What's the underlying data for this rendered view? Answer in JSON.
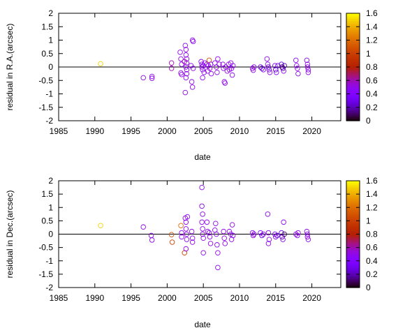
{
  "chart_data": [
    {
      "type": "scatter",
      "xlabel": "date",
      "ylabel": "residual in R.A.(arcsec)",
      "xlim": [
        1985,
        2024
      ],
      "ylim": [
        -2,
        2
      ],
      "xticks": [
        "1985",
        "1990",
        "1995",
        "2000",
        "2005",
        "2010",
        "2015",
        "2020"
      ],
      "yticks": [
        "-2",
        "-1.5",
        "-1",
        "-0.5",
        "0",
        "0.5",
        "1",
        "1.5",
        "2"
      ],
      "zero_line": 0,
      "colorbar": {
        "min": 0,
        "max": 1.6,
        "ticks": [
          "0",
          "0.2",
          "0.4",
          "0.6",
          "0.8",
          "1",
          "1.2",
          "1.4",
          "1.6"
        ]
      },
      "points": [
        {
          "x": 1990.8,
          "y": 0.12,
          "c": 1.5
        },
        {
          "x": 1996.7,
          "y": -0.4,
          "c": 0.5
        },
        {
          "x": 1997.9,
          "y": -0.35,
          "c": 0.5
        },
        {
          "x": 1997.9,
          "y": -0.42,
          "c": 0.5
        },
        {
          "x": 2000.6,
          "y": 0.15,
          "c": 0.6
        },
        {
          "x": 2000.6,
          "y": -0.05,
          "c": 0.6
        },
        {
          "x": 2001.8,
          "y": 0.55,
          "c": 0.5
        },
        {
          "x": 2001.9,
          "y": 0.3,
          "c": 0.5
        },
        {
          "x": 2001.9,
          "y": -0.22,
          "c": 0.5
        },
        {
          "x": 2002.0,
          "y": -0.28,
          "c": 0.5
        },
        {
          "x": 2002.0,
          "y": 0.1,
          "c": 0.5
        },
        {
          "x": 2002.5,
          "y": 0.8,
          "c": 0.5
        },
        {
          "x": 2002.6,
          "y": 0.65,
          "c": 0.5
        },
        {
          "x": 2002.6,
          "y": 0.45,
          "c": 0.5
        },
        {
          "x": 2002.7,
          "y": 0.3,
          "c": 0.5
        },
        {
          "x": 2002.7,
          "y": 0.15,
          "c": 0.5
        },
        {
          "x": 2002.6,
          "y": 0.0,
          "c": 0.5
        },
        {
          "x": 2002.7,
          "y": -0.1,
          "c": 0.5
        },
        {
          "x": 2002.7,
          "y": -0.25,
          "c": 0.5
        },
        {
          "x": 2002.6,
          "y": -0.4,
          "c": 0.5
        },
        {
          "x": 2002.5,
          "y": -0.95,
          "c": 0.5
        },
        {
          "x": 2002.4,
          "y": 0.2,
          "c": 0.6
        },
        {
          "x": 2003.3,
          "y": 0.05,
          "c": 0.5
        },
        {
          "x": 2003.4,
          "y": -0.55,
          "c": 0.5
        },
        {
          "x": 2003.5,
          "y": -0.75,
          "c": 0.5
        },
        {
          "x": 2003.5,
          "y": 1.0,
          "c": 0.5
        },
        {
          "x": 2003.6,
          "y": 0.95,
          "c": 0.5
        },
        {
          "x": 2003.6,
          "y": -0.05,
          "c": 0.5
        },
        {
          "x": 2004.7,
          "y": 0.2,
          "c": 0.5
        },
        {
          "x": 2004.8,
          "y": 0.1,
          "c": 0.5
        },
        {
          "x": 2004.8,
          "y": 0.0,
          "c": 0.5
        },
        {
          "x": 2004.9,
          "y": -0.1,
          "c": 0.5
        },
        {
          "x": 2004.9,
          "y": -0.4,
          "c": 0.5
        },
        {
          "x": 2005.0,
          "y": 0.05,
          "c": 0.5
        },
        {
          "x": 2005.1,
          "y": -0.2,
          "c": 0.5
        },
        {
          "x": 2005.2,
          "y": 0.15,
          "c": 0.5
        },
        {
          "x": 2005.5,
          "y": 0.1,
          "c": 0.5
        },
        {
          "x": 2005.6,
          "y": -0.15,
          "c": 0.5
        },
        {
          "x": 2005.7,
          "y": 0.05,
          "c": 0.5
        },
        {
          "x": 2005.8,
          "y": 0.25,
          "c": 1.1
        },
        {
          "x": 2005.9,
          "y": -0.05,
          "c": 0.5
        },
        {
          "x": 2006.0,
          "y": 0.1,
          "c": 0.5
        },
        {
          "x": 2006.1,
          "y": -0.25,
          "c": 0.5
        },
        {
          "x": 2006.6,
          "y": 0.15,
          "c": 0.5
        },
        {
          "x": 2006.8,
          "y": 0.0,
          "c": 0.5
        },
        {
          "x": 2006.9,
          "y": -0.2,
          "c": 0.5
        },
        {
          "x": 2007.0,
          "y": 0.3,
          "c": 0.5
        },
        {
          "x": 2007.2,
          "y": 0.1,
          "c": 0.5
        },
        {
          "x": 2007.7,
          "y": 0.1,
          "c": 0.5
        },
        {
          "x": 2007.8,
          "y": -0.05,
          "c": 0.5
        },
        {
          "x": 2007.9,
          "y": -0.55,
          "c": 0.5
        },
        {
          "x": 2008.0,
          "y": -0.6,
          "c": 0.5
        },
        {
          "x": 2008.1,
          "y": 0.0,
          "c": 0.5
        },
        {
          "x": 2008.3,
          "y": -0.15,
          "c": 0.5
        },
        {
          "x": 2008.5,
          "y": 0.1,
          "c": 0.5
        },
        {
          "x": 2008.6,
          "y": -0.1,
          "c": 0.5
        },
        {
          "x": 2008.8,
          "y": 0.15,
          "c": 0.5
        },
        {
          "x": 2008.9,
          "y": -0.05,
          "c": 0.5
        },
        {
          "x": 2009.0,
          "y": -0.3,
          "c": 0.5
        },
        {
          "x": 2009.1,
          "y": 0.05,
          "c": 0.5
        },
        {
          "x": 2011.8,
          "y": -0.05,
          "c": 0.5
        },
        {
          "x": 2011.9,
          "y": -0.12,
          "c": 0.5
        },
        {
          "x": 2012.0,
          "y": 0.0,
          "c": 0.5
        },
        {
          "x": 2012.9,
          "y": 0.0,
          "c": 0.3
        },
        {
          "x": 2013.1,
          "y": -0.05,
          "c": 0.2
        },
        {
          "x": 2013.3,
          "y": -0.1,
          "c": 0.4
        },
        {
          "x": 2013.8,
          "y": 0.3,
          "c": 0.5
        },
        {
          "x": 2013.9,
          "y": 0.1,
          "c": 0.5
        },
        {
          "x": 2014.0,
          "y": 0.0,
          "c": 0.3
        },
        {
          "x": 2014.1,
          "y": -0.1,
          "c": 0.4
        },
        {
          "x": 2014.2,
          "y": -0.2,
          "c": 0.5
        },
        {
          "x": 2014.9,
          "y": 0.05,
          "c": 0.4
        },
        {
          "x": 2015.0,
          "y": -0.1,
          "c": 0.2
        },
        {
          "x": 2015.1,
          "y": -0.2,
          "c": 0.4
        },
        {
          "x": 2015.3,
          "y": 0.05,
          "c": 0.3
        },
        {
          "x": 2015.8,
          "y": 0.1,
          "c": 0.3
        },
        {
          "x": 2015.9,
          "y": 0.0,
          "c": 0.1
        },
        {
          "x": 2016.0,
          "y": -0.05,
          "c": 0.15
        },
        {
          "x": 2016.1,
          "y": -0.15,
          "c": 0.4
        },
        {
          "x": 2016.2,
          "y": 0.05,
          "c": 0.2
        },
        {
          "x": 2017.8,
          "y": 0.25,
          "c": 0.5
        },
        {
          "x": 2017.9,
          "y": 0.05,
          "c": 0.5
        },
        {
          "x": 2018.0,
          "y": -0.05,
          "c": 0.5
        },
        {
          "x": 2018.1,
          "y": -0.25,
          "c": 0.5
        },
        {
          "x": 2019.3,
          "y": 0.25,
          "c": 0.5
        },
        {
          "x": 2019.4,
          "y": 0.1,
          "c": 0.5
        },
        {
          "x": 2019.4,
          "y": 0.0,
          "c": 0.5
        },
        {
          "x": 2019.5,
          "y": -0.1,
          "c": 0.5
        },
        {
          "x": 2019.5,
          "y": -0.2,
          "c": 0.5
        }
      ]
    },
    {
      "type": "scatter",
      "xlabel": "date",
      "ylabel": "residual in Dec.(arcsec)",
      "xlim": [
        1985,
        2024
      ],
      "ylim": [
        -2,
        2
      ],
      "xticks": [
        "1985",
        "1990",
        "1995",
        "2000",
        "2005",
        "2010",
        "2015",
        "2020"
      ],
      "yticks": [
        "-2",
        "-1.5",
        "-1",
        "-0.5",
        "0",
        "0.5",
        "1",
        "1.5",
        "2"
      ],
      "zero_line": 0,
      "colorbar": {
        "min": 0,
        "max": 1.6,
        "ticks": [
          "0",
          "0.2",
          "0.4",
          "0.6",
          "0.8",
          "1",
          "1.2",
          "1.4",
          "1.6"
        ]
      },
      "points": [
        {
          "x": 1990.8,
          "y": 0.32,
          "c": 1.5
        },
        {
          "x": 1996.7,
          "y": 0.27,
          "c": 0.5
        },
        {
          "x": 1997.8,
          "y": -0.05,
          "c": 0.5
        },
        {
          "x": 1997.9,
          "y": -0.22,
          "c": 0.5
        },
        {
          "x": 2000.6,
          "y": -0.02,
          "c": 1.1
        },
        {
          "x": 2000.7,
          "y": -0.3,
          "c": 1.0
        },
        {
          "x": 2001.9,
          "y": 0.32,
          "c": 1.2
        },
        {
          "x": 2002.0,
          "y": 0.05,
          "c": 0.5
        },
        {
          "x": 2002.0,
          "y": -0.1,
          "c": 0.5
        },
        {
          "x": 2002.4,
          "y": -0.7,
          "c": 1.0
        },
        {
          "x": 2002.5,
          "y": 0.6,
          "c": 0.5
        },
        {
          "x": 2002.6,
          "y": 0.45,
          "c": 0.5
        },
        {
          "x": 2002.6,
          "y": 0.2,
          "c": 0.5
        },
        {
          "x": 2002.7,
          "y": 0.0,
          "c": 0.5
        },
        {
          "x": 2002.7,
          "y": -0.2,
          "c": 0.5
        },
        {
          "x": 2002.6,
          "y": -0.55,
          "c": 0.5
        },
        {
          "x": 2002.8,
          "y": 0.65,
          "c": 0.5
        },
        {
          "x": 2003.4,
          "y": 0.1,
          "c": 0.5
        },
        {
          "x": 2003.5,
          "y": -0.15,
          "c": 0.5
        },
        {
          "x": 2003.5,
          "y": -0.3,
          "c": 0.5
        },
        {
          "x": 2004.8,
          "y": 1.75,
          "c": 0.5
        },
        {
          "x": 2004.8,
          "y": 1.05,
          "c": 0.5
        },
        {
          "x": 2004.9,
          "y": 0.75,
          "c": 0.5
        },
        {
          "x": 2004.8,
          "y": 0.45,
          "c": 0.5
        },
        {
          "x": 2004.9,
          "y": 0.2,
          "c": 0.5
        },
        {
          "x": 2004.9,
          "y": 0.0,
          "c": 0.5
        },
        {
          "x": 2005.0,
          "y": -0.15,
          "c": 0.5
        },
        {
          "x": 2005.0,
          "y": -0.7,
          "c": 0.5
        },
        {
          "x": 2005.5,
          "y": 0.45,
          "c": 0.5
        },
        {
          "x": 2005.6,
          "y": 0.1,
          "c": 0.5
        },
        {
          "x": 2005.8,
          "y": 0.05,
          "c": 0.5
        },
        {
          "x": 2005.9,
          "y": -0.1,
          "c": 0.5
        },
        {
          "x": 2006.0,
          "y": -0.35,
          "c": 0.5
        },
        {
          "x": 2006.6,
          "y": 0.15,
          "c": 0.5
        },
        {
          "x": 2006.7,
          "y": 0.4,
          "c": 0.5
        },
        {
          "x": 2006.8,
          "y": 0.0,
          "c": 0.5
        },
        {
          "x": 2006.9,
          "y": -0.4,
          "c": 0.5
        },
        {
          "x": 2007.0,
          "y": -0.7,
          "c": 0.5
        },
        {
          "x": 2007.0,
          "y": -1.25,
          "c": 0.5
        },
        {
          "x": 2007.8,
          "y": 0.1,
          "c": 0.5
        },
        {
          "x": 2007.9,
          "y": -0.15,
          "c": 0.5
        },
        {
          "x": 2008.0,
          "y": -0.35,
          "c": 0.5
        },
        {
          "x": 2008.6,
          "y": 0.1,
          "c": 0.5
        },
        {
          "x": 2008.8,
          "y": 0.0,
          "c": 0.5
        },
        {
          "x": 2008.9,
          "y": -0.2,
          "c": 0.5
        },
        {
          "x": 2009.0,
          "y": 0.35,
          "c": 0.5
        },
        {
          "x": 2009.1,
          "y": -0.05,
          "c": 0.5
        },
        {
          "x": 2011.8,
          "y": 0.05,
          "c": 0.5
        },
        {
          "x": 2011.9,
          "y": -0.05,
          "c": 0.5
        },
        {
          "x": 2012.0,
          "y": 0.0,
          "c": 0.5
        },
        {
          "x": 2012.9,
          "y": 0.05,
          "c": 0.4
        },
        {
          "x": 2013.1,
          "y": -0.05,
          "c": 0.3
        },
        {
          "x": 2013.3,
          "y": 0.0,
          "c": 0.5
        },
        {
          "x": 2013.9,
          "y": 0.75,
          "c": 0.5
        },
        {
          "x": 2014.0,
          "y": 0.05,
          "c": 0.5
        },
        {
          "x": 2014.1,
          "y": -0.2,
          "c": 0.5
        },
        {
          "x": 2014.0,
          "y": -0.35,
          "c": 0.5
        },
        {
          "x": 2014.9,
          "y": 0.0,
          "c": 0.4
        },
        {
          "x": 2015.0,
          "y": -0.1,
          "c": 0.5
        },
        {
          "x": 2015.2,
          "y": -0.05,
          "c": 0.3
        },
        {
          "x": 2015.8,
          "y": 0.05,
          "c": 0.3
        },
        {
          "x": 2015.9,
          "y": -0.1,
          "c": 0.2
        },
        {
          "x": 2016.0,
          "y": -0.2,
          "c": 0.5
        },
        {
          "x": 2016.1,
          "y": 0.45,
          "c": 0.5
        },
        {
          "x": 2016.2,
          "y": 0.0,
          "c": 0.1
        },
        {
          "x": 2017.8,
          "y": 0.0,
          "c": 0.5
        },
        {
          "x": 2018.0,
          "y": -0.05,
          "c": 0.5
        },
        {
          "x": 2018.1,
          "y": 0.05,
          "c": 0.5
        },
        {
          "x": 2019.3,
          "y": 0.1,
          "c": 0.5
        },
        {
          "x": 2019.4,
          "y": 0.0,
          "c": 0.5
        },
        {
          "x": 2019.4,
          "y": -0.1,
          "c": 0.5
        },
        {
          "x": 2019.5,
          "y": -0.2,
          "c": 0.5
        }
      ]
    }
  ]
}
